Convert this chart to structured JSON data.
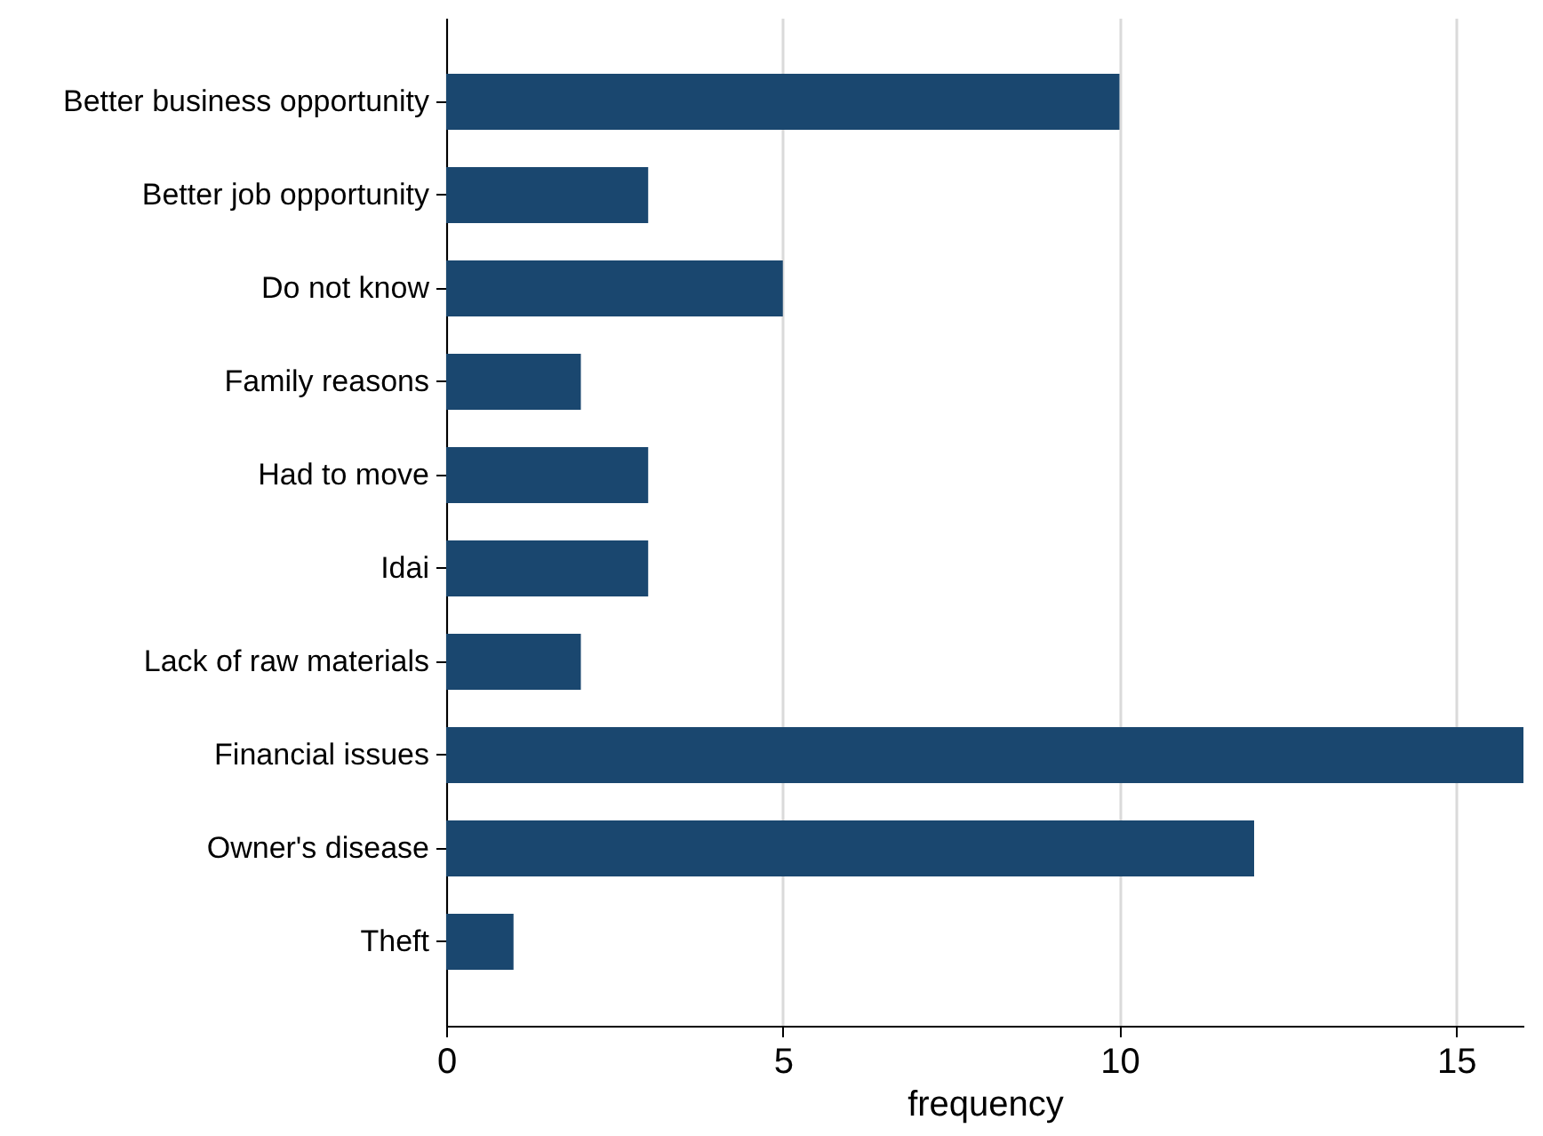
{
  "chart_data": {
    "type": "bar",
    "orientation": "horizontal",
    "xlabel": "frequency",
    "categories": [
      "Better business opportunity",
      "Better job opportunity",
      "Do not know",
      "Family reasons",
      "Had to move",
      "Idai",
      "Lack of raw materials",
      "Financial issues",
      "Owner's disease",
      "Theft"
    ],
    "values": [
      10,
      3,
      5,
      2,
      3,
      3,
      2,
      16,
      12,
      1
    ],
    "color": "#1a476f",
    "xlim": [
      0,
      16
    ],
    "xticks": [
      0,
      5,
      10,
      15
    ],
    "grid": "x"
  }
}
